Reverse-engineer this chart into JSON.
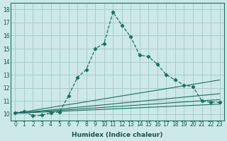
{
  "xlabel": "Humidex (Indice chaleur)",
  "bg_color": "#cce8e8",
  "grid_color": "#aacccc",
  "line_color": "#1a7060",
  "xlim": [
    -0.5,
    23.5
  ],
  "ylim": [
    9.5,
    18.5
  ],
  "xticks": [
    0,
    1,
    2,
    3,
    4,
    5,
    6,
    7,
    8,
    9,
    10,
    11,
    12,
    13,
    14,
    15,
    16,
    17,
    18,
    19,
    20,
    21,
    22,
    23
  ],
  "yticks": [
    10,
    11,
    12,
    13,
    14,
    15,
    16,
    17,
    18
  ],
  "main_curve": [
    [
      0,
      10.1
    ],
    [
      1,
      10.2
    ],
    [
      2,
      9.85
    ],
    [
      3,
      9.9
    ],
    [
      4,
      10.1
    ],
    [
      5,
      10.15
    ],
    [
      6,
      11.4
    ],
    [
      7,
      12.8
    ],
    [
      8,
      13.4
    ],
    [
      9,
      15.0
    ],
    [
      10,
      15.4
    ],
    [
      11,
      17.8
    ],
    [
      12,
      16.8
    ],
    [
      13,
      15.9
    ],
    [
      14,
      14.5
    ],
    [
      15,
      14.4
    ],
    [
      16,
      13.8
    ],
    [
      17,
      13.0
    ],
    [
      18,
      12.6
    ],
    [
      19,
      12.2
    ],
    [
      20,
      12.1
    ],
    [
      21,
      11.0
    ],
    [
      22,
      10.9
    ],
    [
      23,
      10.9
    ]
  ],
  "straight_lines": [
    {
      "x": [
        0,
        23
      ],
      "y": [
        10.05,
        12.6
      ]
    },
    {
      "x": [
        0,
        23
      ],
      "y": [
        10.05,
        11.55
      ]
    },
    {
      "x": [
        0,
        23
      ],
      "y": [
        10.05,
        11.1
      ]
    },
    {
      "x": [
        0,
        23
      ],
      "y": [
        10.05,
        10.75
      ]
    }
  ],
  "tick_fontsize": 5.5,
  "xlabel_fontsize": 6.5,
  "tick_color": "#1a5050",
  "label_color": "#1a5050"
}
